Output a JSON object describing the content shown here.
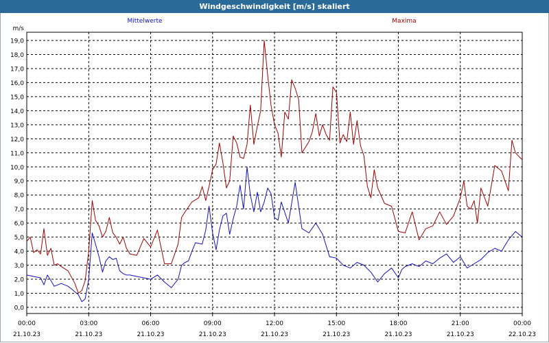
{
  "window": {
    "title": "Windgeschwindigkeit [m/s] skaliert"
  },
  "colors": {
    "mean": "#1010c0",
    "max": "#a00000",
    "grid": "#000000",
    "titlebar": "#2a6a99"
  },
  "chart_data": {
    "type": "line",
    "title": "Windgeschwindigkeit [m/s] skaliert",
    "ylabel": "m/s",
    "xlabel": "",
    "ylim": [
      0,
      19.5
    ],
    "xlim_hours": [
      0,
      24
    ],
    "grid": true,
    "y_ticks": [
      "0,0",
      "1,0",
      "2,0",
      "3,0",
      "4,0",
      "5,0",
      "6,0",
      "7,0",
      "8,0",
      "9,0",
      "10,0",
      "11,0",
      "12,0",
      "13,0",
      "14,0",
      "15,0",
      "16,0",
      "17,0",
      "18,0",
      "19,0"
    ],
    "x_ticks": [
      {
        "time": "00:00",
        "date": "21.10.23"
      },
      {
        "time": "03:00",
        "date": "21.10.23"
      },
      {
        "time": "06:00",
        "date": "21.10.23"
      },
      {
        "time": "09:00",
        "date": "21.10.23"
      },
      {
        "time": "12:00",
        "date": "21.10.23"
      },
      {
        "time": "15:00",
        "date": "21.10.23"
      },
      {
        "time": "18:00",
        "date": "21.10.23"
      },
      {
        "time": "21:00",
        "date": "21.10.23"
      },
      {
        "time": "00:00",
        "date": "22.10.23"
      }
    ],
    "series": [
      {
        "name": "Mittelwerte",
        "color": "#1010c0",
        "x_hours": [
          0.0,
          0.33,
          0.67,
          0.83,
          1.0,
          1.17,
          1.33,
          1.67,
          2.0,
          2.17,
          2.5,
          2.67,
          2.83,
          3.0,
          3.17,
          3.33,
          3.5,
          3.67,
          3.83,
          4.0,
          4.17,
          4.33,
          4.5,
          4.67,
          4.83,
          5.0,
          5.33,
          5.67,
          6.0,
          6.33,
          6.67,
          7.0,
          7.33,
          7.5,
          7.67,
          7.83,
          8.0,
          8.17,
          8.5,
          8.67,
          8.83,
          9.0,
          9.17,
          9.33,
          9.5,
          9.67,
          9.83,
          10.0,
          10.17,
          10.33,
          10.5,
          10.67,
          10.83,
          11.0,
          11.17,
          11.33,
          11.5,
          11.67,
          11.83,
          12.0,
          12.17,
          12.33,
          12.67,
          13.0,
          13.33,
          13.67,
          14.0,
          14.33,
          14.67,
          15.0,
          15.33,
          15.67,
          16.0,
          16.33,
          16.67,
          17.0,
          17.33,
          17.67,
          18.0,
          18.17,
          18.33,
          18.67,
          19.0,
          19.33,
          19.67,
          20.0,
          20.33,
          20.67,
          21.0,
          21.33,
          21.67,
          22.0,
          22.33,
          22.67,
          23.0,
          23.33,
          23.67,
          24.0
        ],
        "values": [
          2.3,
          2.2,
          2.1,
          1.6,
          2.3,
          1.9,
          1.5,
          1.7,
          1.5,
          1.3,
          0.9,
          0.4,
          0.6,
          2.0,
          5.3,
          4.5,
          3.6,
          2.5,
          3.3,
          3.6,
          3.4,
          3.5,
          2.6,
          2.4,
          2.3,
          2.3,
          2.2,
          2.1,
          2.0,
          2.3,
          1.8,
          1.4,
          2.0,
          3.0,
          3.2,
          3.3,
          4.0,
          4.6,
          4.5,
          5.5,
          7.2,
          5.3,
          4.1,
          5.5,
          6.5,
          6.7,
          5.2,
          6.3,
          7.2,
          8.7,
          7.0,
          10.0,
          8.0,
          6.8,
          8.2,
          6.8,
          7.5,
          8.5,
          8.1,
          6.4,
          6.2,
          7.5,
          6.0,
          8.9,
          5.6,
          5.3,
          6.0,
          5.2,
          3.6,
          3.5,
          3.0,
          2.8,
          3.2,
          3.0,
          2.5,
          1.8,
          2.4,
          2.8,
          2.1,
          2.7,
          2.9,
          3.1,
          2.9,
          3.3,
          3.1,
          3.5,
          3.8,
          3.2,
          3.6,
          2.8,
          3.1,
          3.4,
          3.9,
          4.2,
          4.0,
          4.8,
          5.4,
          5.0
        ]
      },
      {
        "name": "Maxima",
        "color": "#a00000",
        "x_hours": [
          0.0,
          0.17,
          0.33,
          0.5,
          0.67,
          0.83,
          1.0,
          1.17,
          1.33,
          1.5,
          1.67,
          2.0,
          2.33,
          2.5,
          2.67,
          2.83,
          3.0,
          3.17,
          3.33,
          3.5,
          3.67,
          3.83,
          4.0,
          4.17,
          4.33,
          4.5,
          4.67,
          4.83,
          5.0,
          5.33,
          5.67,
          6.0,
          6.33,
          6.67,
          7.0,
          7.33,
          7.5,
          7.67,
          8.0,
          8.33,
          8.5,
          8.67,
          8.83,
          9.0,
          9.17,
          9.33,
          9.5,
          9.67,
          9.83,
          10.0,
          10.17,
          10.33,
          10.5,
          10.67,
          10.83,
          11.0,
          11.17,
          11.33,
          11.5,
          11.67,
          11.83,
          12.0,
          12.17,
          12.33,
          12.5,
          12.67,
          12.83,
          13.0,
          13.17,
          13.33,
          13.5,
          13.67,
          13.83,
          14.0,
          14.17,
          14.33,
          14.5,
          14.67,
          14.83,
          15.0,
          15.17,
          15.33,
          15.5,
          15.67,
          15.83,
          16.0,
          16.17,
          16.33,
          16.5,
          16.67,
          16.83,
          17.0,
          17.33,
          17.67,
          18.0,
          18.33,
          18.67,
          19.0,
          19.33,
          19.67,
          20.0,
          20.33,
          20.67,
          21.0,
          21.17,
          21.33,
          21.5,
          21.67,
          21.83,
          22.0,
          22.33,
          22.67,
          23.0,
          23.33,
          23.5,
          23.67,
          24.0
        ],
        "values": [
          4.7,
          5.0,
          3.9,
          4.1,
          3.8,
          5.6,
          3.7,
          4.2,
          3.0,
          3.1,
          2.9,
          2.6,
          1.7,
          1.0,
          1.2,
          1.9,
          4.0,
          7.6,
          6.2,
          5.8,
          5.0,
          5.4,
          6.4,
          5.3,
          5.0,
          4.5,
          5.0,
          4.2,
          3.8,
          3.7,
          4.9,
          4.3,
          5.5,
          3.1,
          3.1,
          4.5,
          6.4,
          6.8,
          7.5,
          7.8,
          8.6,
          7.6,
          8.6,
          9.8,
          10.2,
          11.7,
          10.3,
          8.5,
          9.0,
          12.2,
          11.7,
          10.7,
          10.6,
          11.6,
          14.4,
          11.6,
          12.9,
          14.0,
          19.0,
          16.5,
          14.4,
          13.0,
          12.4,
          10.7,
          13.9,
          13.4,
          16.2,
          15.6,
          14.8,
          11.0,
          11.4,
          11.8,
          12.5,
          13.8,
          12.2,
          13.0,
          12.3,
          11.9,
          15.7,
          15.3,
          11.7,
          12.3,
          11.8,
          13.9,
          11.6,
          13.3,
          11.5,
          10.8,
          8.6,
          7.8,
          9.8,
          8.5,
          7.4,
          7.2,
          5.4,
          5.3,
          6.8,
          4.8,
          5.6,
          5.8,
          6.8,
          5.9,
          6.5,
          7.8,
          9.0,
          7.2,
          7.0,
          7.6,
          6.0,
          8.5,
          7.2,
          10.1,
          9.7,
          8.3,
          11.9,
          11.0,
          10.5
        ]
      }
    ]
  }
}
